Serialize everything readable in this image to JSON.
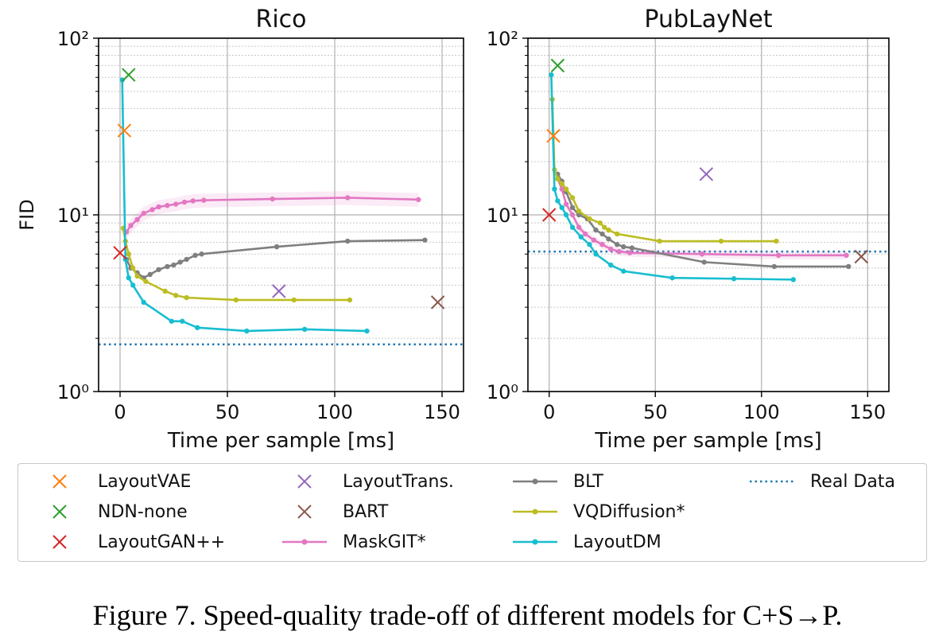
{
  "caption": "Figure 7. Speed-quality trade-off of different models for C+S→P.",
  "colors": {
    "LayoutVAE": "#ff7f0e",
    "NDN-none": "#2ca02c",
    "LayoutGAN++": "#d62728",
    "LayoutTrans.": "#9467bd",
    "BART": "#8c564b",
    "MaskGIT*": "#e377c2",
    "BLT": "#7f7f7f",
    "VQDiffusion*": "#bcbd22",
    "LayoutDM": "#17becf",
    "Real Data": "#1f77b4"
  },
  "legend": [
    {
      "name": "LayoutVAE",
      "kind": "x"
    },
    {
      "name": "NDN-none",
      "kind": "x"
    },
    {
      "name": "LayoutGAN++",
      "kind": "x"
    },
    {
      "name": "LayoutTrans.",
      "kind": "x"
    },
    {
      "name": "BART",
      "kind": "x"
    },
    {
      "name": "MaskGIT*",
      "kind": "line"
    },
    {
      "name": "BLT",
      "kind": "line"
    },
    {
      "name": "VQDiffusion*",
      "kind": "line"
    },
    {
      "name": "LayoutDM",
      "kind": "line"
    },
    {
      "name": "Real Data",
      "kind": "dotted"
    }
  ],
  "chart_data": [
    {
      "type": "line",
      "title": "Rico",
      "xlabel": "Time per sample [ms]",
      "ylabel": "FID",
      "xlim": [
        -10,
        160
      ],
      "ylim": [
        1,
        100
      ],
      "yscale": "log",
      "xticks": [
        0,
        50,
        100,
        150
      ],
      "yticks": [
        1,
        10,
        100
      ],
      "ytick_labels": [
        "10⁰",
        "10¹",
        "10²"
      ],
      "grid": true,
      "markers": [
        {
          "name": "LayoutVAE",
          "x": 2,
          "y": 30
        },
        {
          "name": "NDN-none",
          "x": 4,
          "y": 62
        },
        {
          "name": "LayoutGAN++",
          "x": 0,
          "y": 6.1
        },
        {
          "name": "LayoutTrans.",
          "x": 74,
          "y": 3.7
        },
        {
          "name": "BART",
          "x": 148,
          "y": 3.2
        }
      ],
      "series": [
        {
          "name": "MaskGIT*",
          "band": 0.09,
          "x": [
            3,
            5,
            8,
            11,
            15,
            18,
            22,
            26,
            30,
            34,
            39,
            71,
            106,
            139
          ],
          "y": [
            8.0,
            8.7,
            9.4,
            10.2,
            10.7,
            11.1,
            11.3,
            11.5,
            11.8,
            12.0,
            12.1,
            12.3,
            12.5,
            12.2
          ]
        },
        {
          "name": "BLT",
          "x": [
            3,
            5,
            8,
            11,
            14,
            18,
            22,
            25,
            28,
            31,
            35,
            38,
            73,
            106,
            142
          ],
          "y": [
            5.6,
            5.0,
            4.7,
            4.4,
            4.6,
            4.9,
            5.1,
            5.2,
            5.4,
            5.6,
            5.9,
            6.0,
            6.6,
            7.1,
            7.2
          ]
        },
        {
          "name": "VQDiffusion*",
          "x": [
            1.5,
            2.5,
            4,
            6,
            8,
            12,
            21,
            26,
            31,
            54,
            81,
            107
          ],
          "y": [
            8.4,
            7.1,
            6.0,
            5.0,
            4.5,
            4.2,
            3.7,
            3.5,
            3.4,
            3.3,
            3.3,
            3.3
          ]
        },
        {
          "name": "LayoutDM",
          "x": [
            1,
            2.5,
            4,
            6,
            11,
            24,
            29,
            36,
            59,
            86,
            115
          ],
          "y": [
            58,
            5.6,
            4.4,
            4.0,
            3.2,
            2.5,
            2.5,
            2.3,
            2.2,
            2.25,
            2.2
          ]
        }
      ],
      "reference": {
        "name": "Real Data",
        "y": 1.85
      }
    },
    {
      "type": "line",
      "title": "PubLayNet",
      "xlabel": "Time per sample [ms]",
      "ylabel": "",
      "xlim": [
        -10,
        160
      ],
      "ylim": [
        1,
        100
      ],
      "yscale": "log",
      "xticks": [
        0,
        50,
        100,
        150
      ],
      "yticks": [
        1,
        10,
        100
      ],
      "ytick_labels": [
        "10⁰",
        "10¹",
        "10²"
      ],
      "grid": true,
      "markers": [
        {
          "name": "LayoutVAE",
          "x": 2,
          "y": 28
        },
        {
          "name": "NDN-none",
          "x": 4,
          "y": 70
        },
        {
          "name": "LayoutGAN++",
          "x": 0,
          "y": 10
        },
        {
          "name": "LayoutTrans.",
          "x": 74,
          "y": 17
        },
        {
          "name": "BART",
          "x": 147,
          "y": 5.8
        }
      ],
      "series": [
        {
          "name": "MaskGIT*",
          "band": 0.05,
          "x": [
            4,
            6,
            8,
            11,
            14,
            17,
            21,
            25,
            29,
            33,
            38,
            72,
            108,
            140
          ],
          "y": [
            16,
            14,
            11.5,
            10,
            8.5,
            7.8,
            7.2,
            6.8,
            6.4,
            6.2,
            6.1,
            6.0,
            5.9,
            5.9
          ]
        },
        {
          "name": "BLT",
          "x": [
            4,
            6,
            8,
            11,
            14,
            18,
            22,
            25,
            28,
            32,
            35,
            39,
            73,
            106,
            141
          ],
          "y": [
            17,
            15.5,
            13.5,
            11,
            10,
            9.5,
            8.2,
            7.8,
            7.3,
            6.8,
            6.6,
            6.5,
            5.4,
            5.1,
            5.1
          ]
        },
        {
          "name": "VQDiffusion*",
          "x": [
            1.5,
            2.5,
            4,
            6,
            8,
            11,
            14,
            19,
            24,
            26,
            28,
            32,
            52,
            81,
            107
          ],
          "y": [
            45,
            18,
            16,
            15,
            14,
            12.5,
            10.5,
            9.5,
            9.0,
            8.5,
            8.2,
            7.8,
            7.1,
            7.1,
            7.1
          ]
        },
        {
          "name": "LayoutDM",
          "x": [
            1,
            2.5,
            4,
            6,
            8,
            11,
            15,
            19,
            22,
            29,
            35,
            58,
            87,
            115
          ],
          "y": [
            62,
            14,
            12,
            11,
            10,
            8.5,
            7.5,
            6.8,
            6.0,
            5.2,
            4.8,
            4.4,
            4.35,
            4.3
          ]
        }
      ],
      "reference": {
        "name": "Real Data",
        "y": 6.2
      }
    }
  ]
}
